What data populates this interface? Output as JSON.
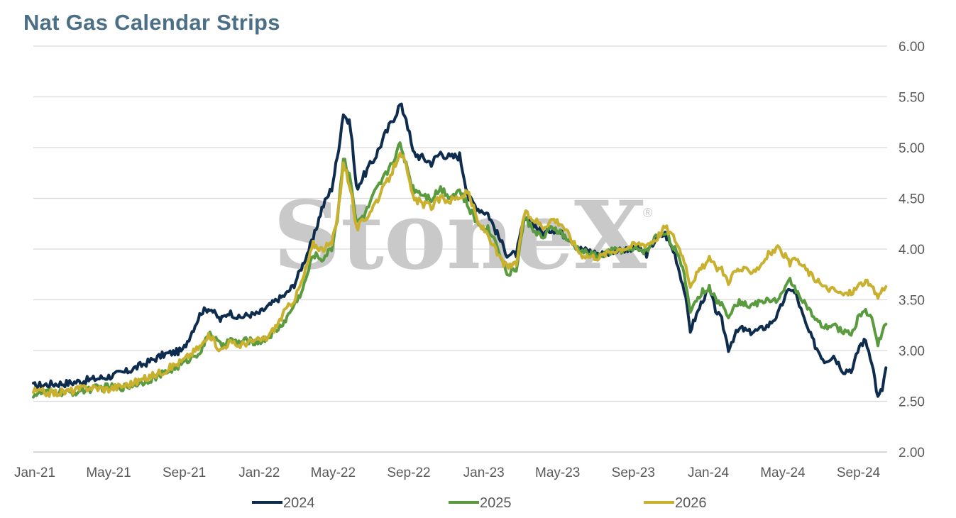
{
  "chart_data": {
    "type": "line",
    "title": "Nat Gas Calendar Strips",
    "watermark": "StoneX",
    "watermark_mark": "®",
    "x_tick_labels": [
      "Jan-21",
      "May-21",
      "Sep-21",
      "Jan-22",
      "May-22",
      "Sep-22",
      "Jan-23",
      "May-23",
      "Sep-23",
      "Jan-24",
      "May-24",
      "Sep-24"
    ],
    "xlim": [
      "2021-01-01",
      "2024-10-20"
    ],
    "ylim": [
      2.0,
      6.0
    ],
    "y_ticks": [
      "2.00",
      "2.50",
      "3.00",
      "3.50",
      "4.00",
      "4.50",
      "5.00",
      "5.50",
      "6.00"
    ],
    "y_axis_side": "right",
    "grid": "horizontal",
    "legend_position": "bottom",
    "series": [
      {
        "name": "2024",
        "color": "#0e2d4e",
        "points": [
          [
            "2021-01-01",
            2.65
          ],
          [
            "2021-02-01",
            2.67
          ],
          [
            "2021-03-01",
            2.68
          ],
          [
            "2021-04-01",
            2.71
          ],
          [
            "2021-05-01",
            2.74
          ],
          [
            "2021-06-01",
            2.79
          ],
          [
            "2021-07-01",
            2.87
          ],
          [
            "2021-08-01",
            2.96
          ],
          [
            "2021-09-01",
            3.0
          ],
          [
            "2021-10-01",
            3.38
          ],
          [
            "2021-10-15",
            3.42
          ],
          [
            "2021-11-01",
            3.3
          ],
          [
            "2021-11-15",
            3.38
          ],
          [
            "2021-12-01",
            3.32
          ],
          [
            "2021-12-15",
            3.35
          ],
          [
            "2022-01-01",
            3.36
          ],
          [
            "2022-01-15",
            3.42
          ],
          [
            "2022-02-01",
            3.5
          ],
          [
            "2022-02-15",
            3.55
          ],
          [
            "2022-03-01",
            3.65
          ],
          [
            "2022-03-15",
            3.85
          ],
          [
            "2022-04-01",
            4.1
          ],
          [
            "2022-04-15",
            4.4
          ],
          [
            "2022-05-01",
            4.6
          ],
          [
            "2022-05-10",
            4.9
          ],
          [
            "2022-05-20",
            5.35
          ],
          [
            "2022-06-01",
            5.2
          ],
          [
            "2022-06-10",
            4.6
          ],
          [
            "2022-06-25",
            4.75
          ],
          [
            "2022-07-10",
            4.9
          ],
          [
            "2022-07-25",
            5.1
          ],
          [
            "2022-08-10",
            5.3
          ],
          [
            "2022-08-20",
            5.42
          ],
          [
            "2022-08-30",
            5.3
          ],
          [
            "2022-09-10",
            4.95
          ],
          [
            "2022-09-25",
            4.9
          ],
          [
            "2022-10-10",
            4.85
          ],
          [
            "2022-10-25",
            4.95
          ],
          [
            "2022-11-10",
            4.9
          ],
          [
            "2022-11-25",
            4.92
          ],
          [
            "2022-12-10",
            4.5
          ],
          [
            "2022-12-25",
            4.4
          ],
          [
            "2023-01-10",
            4.35
          ],
          [
            "2023-01-25",
            4.15
          ],
          [
            "2023-02-10",
            3.95
          ],
          [
            "2023-02-25",
            3.95
          ],
          [
            "2023-03-10",
            4.3
          ],
          [
            "2023-03-25",
            4.25
          ],
          [
            "2023-04-10",
            4.15
          ],
          [
            "2023-04-25",
            4.2
          ],
          [
            "2023-05-10",
            4.15
          ],
          [
            "2023-05-25",
            4.1
          ],
          [
            "2023-06-10",
            4.0
          ],
          [
            "2023-06-25",
            3.98
          ],
          [
            "2023-07-10",
            3.95
          ],
          [
            "2023-07-25",
            3.96
          ],
          [
            "2023-08-10",
            4.0
          ],
          [
            "2023-08-25",
            3.98
          ],
          [
            "2023-09-10",
            4.02
          ],
          [
            "2023-09-25",
            3.95
          ],
          [
            "2023-10-10",
            4.1
          ],
          [
            "2023-10-25",
            4.15
          ],
          [
            "2023-11-10",
            3.95
          ],
          [
            "2023-11-25",
            3.6
          ],
          [
            "2023-12-05",
            3.2
          ],
          [
            "2023-12-15",
            3.35
          ],
          [
            "2023-12-25",
            3.5
          ],
          [
            "2024-01-05",
            3.6
          ],
          [
            "2024-01-15",
            3.4
          ],
          [
            "2024-01-25",
            3.3
          ],
          [
            "2024-02-05",
            3.02
          ],
          [
            "2024-02-15",
            3.15
          ],
          [
            "2024-02-25",
            3.22
          ],
          [
            "2024-03-10",
            3.18
          ],
          [
            "2024-03-25",
            3.2
          ],
          [
            "2024-04-10",
            3.25
          ],
          [
            "2024-04-25",
            3.35
          ],
          [
            "2024-05-05",
            3.5
          ],
          [
            "2024-05-15",
            3.62
          ],
          [
            "2024-05-25",
            3.55
          ],
          [
            "2024-06-10",
            3.25
          ],
          [
            "2024-06-25",
            3.05
          ],
          [
            "2024-07-10",
            2.9
          ],
          [
            "2024-07-25",
            2.95
          ],
          [
            "2024-08-10",
            2.8
          ],
          [
            "2024-08-25",
            2.82
          ],
          [
            "2024-09-05",
            3.05
          ],
          [
            "2024-09-15",
            3.1
          ],
          [
            "2024-09-25",
            2.9
          ],
          [
            "2024-10-05",
            2.53
          ],
          [
            "2024-10-12",
            2.62
          ],
          [
            "2024-10-18",
            2.83
          ]
        ]
      },
      {
        "name": "2025",
        "color": "#5b9b3f",
        "points": [
          [
            "2021-01-01",
            2.57
          ],
          [
            "2021-02-01",
            2.59
          ],
          [
            "2021-03-01",
            2.58
          ],
          [
            "2021-04-01",
            2.62
          ],
          [
            "2021-05-01",
            2.64
          ],
          [
            "2021-06-01",
            2.64
          ],
          [
            "2021-07-01",
            2.7
          ],
          [
            "2021-08-01",
            2.77
          ],
          [
            "2021-09-01",
            2.87
          ],
          [
            "2021-10-01",
            3.0
          ],
          [
            "2021-10-15",
            3.18
          ],
          [
            "2021-11-01",
            3.05
          ],
          [
            "2021-11-15",
            3.1
          ],
          [
            "2021-12-01",
            3.08
          ],
          [
            "2021-12-15",
            3.1
          ],
          [
            "2022-01-01",
            3.08
          ],
          [
            "2022-01-15",
            3.12
          ],
          [
            "2022-02-01",
            3.2
          ],
          [
            "2022-02-15",
            3.3
          ],
          [
            "2022-03-01",
            3.45
          ],
          [
            "2022-03-15",
            3.6
          ],
          [
            "2022-04-01",
            3.95
          ],
          [
            "2022-04-15",
            3.9
          ],
          [
            "2022-05-01",
            4.0
          ],
          [
            "2022-05-10",
            4.3
          ],
          [
            "2022-05-20",
            4.9
          ],
          [
            "2022-06-01",
            4.7
          ],
          [
            "2022-06-10",
            4.25
          ],
          [
            "2022-06-25",
            4.35
          ],
          [
            "2022-07-10",
            4.55
          ],
          [
            "2022-07-25",
            4.7
          ],
          [
            "2022-08-10",
            4.9
          ],
          [
            "2022-08-20",
            5.02
          ],
          [
            "2022-08-30",
            4.85
          ],
          [
            "2022-09-10",
            4.6
          ],
          [
            "2022-09-25",
            4.55
          ],
          [
            "2022-10-10",
            4.5
          ],
          [
            "2022-10-25",
            4.6
          ],
          [
            "2022-11-10",
            4.52
          ],
          [
            "2022-11-25",
            4.58
          ],
          [
            "2022-12-10",
            4.4
          ],
          [
            "2022-12-25",
            4.25
          ],
          [
            "2023-01-10",
            4.2
          ],
          [
            "2023-01-25",
            4.05
          ],
          [
            "2023-02-10",
            3.75
          ],
          [
            "2023-02-25",
            3.8
          ],
          [
            "2023-03-10",
            4.3
          ],
          [
            "2023-03-25",
            4.2
          ],
          [
            "2023-04-10",
            4.1
          ],
          [
            "2023-04-25",
            4.22
          ],
          [
            "2023-05-10",
            4.15
          ],
          [
            "2023-05-25",
            4.05
          ],
          [
            "2023-06-10",
            3.98
          ],
          [
            "2023-06-25",
            3.95
          ],
          [
            "2023-07-10",
            3.93
          ],
          [
            "2023-07-25",
            3.97
          ],
          [
            "2023-08-10",
            4.0
          ],
          [
            "2023-08-25",
            3.98
          ],
          [
            "2023-09-10",
            4.0
          ],
          [
            "2023-09-25",
            3.98
          ],
          [
            "2023-10-10",
            4.12
          ],
          [
            "2023-10-25",
            4.18
          ],
          [
            "2023-11-10",
            4.0
          ],
          [
            "2023-11-25",
            3.75
          ],
          [
            "2023-12-05",
            3.4
          ],
          [
            "2023-12-15",
            3.5
          ],
          [
            "2023-12-25",
            3.58
          ],
          [
            "2024-01-05",
            3.62
          ],
          [
            "2024-01-15",
            3.5
          ],
          [
            "2024-01-25",
            3.45
          ],
          [
            "2024-02-05",
            3.35
          ],
          [
            "2024-02-15",
            3.45
          ],
          [
            "2024-02-25",
            3.48
          ],
          [
            "2024-03-10",
            3.44
          ],
          [
            "2024-03-25",
            3.47
          ],
          [
            "2024-04-10",
            3.5
          ],
          [
            "2024-04-25",
            3.5
          ],
          [
            "2024-05-05",
            3.58
          ],
          [
            "2024-05-15",
            3.7
          ],
          [
            "2024-05-25",
            3.6
          ],
          [
            "2024-06-10",
            3.45
          ],
          [
            "2024-06-25",
            3.3
          ],
          [
            "2024-07-10",
            3.22
          ],
          [
            "2024-07-25",
            3.25
          ],
          [
            "2024-08-10",
            3.18
          ],
          [
            "2024-08-25",
            3.18
          ],
          [
            "2024-09-05",
            3.35
          ],
          [
            "2024-09-15",
            3.4
          ],
          [
            "2024-09-25",
            3.3
          ],
          [
            "2024-10-05",
            3.08
          ],
          [
            "2024-10-12",
            3.18
          ],
          [
            "2024-10-18",
            3.26
          ]
        ]
      },
      {
        "name": "2026",
        "color": "#c9b12f",
        "points": [
          [
            "2021-01-01",
            2.6
          ],
          [
            "2021-02-01",
            2.58
          ],
          [
            "2021-03-01",
            2.6
          ],
          [
            "2021-04-01",
            2.64
          ],
          [
            "2021-05-01",
            2.62
          ],
          [
            "2021-06-01",
            2.66
          ],
          [
            "2021-07-01",
            2.72
          ],
          [
            "2021-08-01",
            2.8
          ],
          [
            "2021-09-01",
            2.9
          ],
          [
            "2021-10-01",
            3.05
          ],
          [
            "2021-10-15",
            3.15
          ],
          [
            "2021-11-01",
            3.0
          ],
          [
            "2021-11-15",
            3.08
          ],
          [
            "2021-12-01",
            3.05
          ],
          [
            "2021-12-15",
            3.08
          ],
          [
            "2022-01-01",
            3.1
          ],
          [
            "2022-01-15",
            3.12
          ],
          [
            "2022-02-01",
            3.25
          ],
          [
            "2022-02-15",
            3.4
          ],
          [
            "2022-03-01",
            3.5
          ],
          [
            "2022-03-15",
            3.7
          ],
          [
            "2022-04-01",
            4.05
          ],
          [
            "2022-04-15",
            4.0
          ],
          [
            "2022-05-01",
            4.05
          ],
          [
            "2022-05-10",
            4.3
          ],
          [
            "2022-05-20",
            4.85
          ],
          [
            "2022-06-01",
            4.6
          ],
          [
            "2022-06-10",
            4.2
          ],
          [
            "2022-06-25",
            4.3
          ],
          [
            "2022-07-10",
            4.45
          ],
          [
            "2022-07-25",
            4.6
          ],
          [
            "2022-08-10",
            4.8
          ],
          [
            "2022-08-20",
            4.98
          ],
          [
            "2022-08-30",
            4.8
          ],
          [
            "2022-09-10",
            4.5
          ],
          [
            "2022-09-25",
            4.45
          ],
          [
            "2022-10-10",
            4.42
          ],
          [
            "2022-10-25",
            4.5
          ],
          [
            "2022-11-10",
            4.48
          ],
          [
            "2022-11-25",
            4.52
          ],
          [
            "2022-12-10",
            4.55
          ],
          [
            "2022-12-25",
            4.25
          ],
          [
            "2023-01-10",
            4.15
          ],
          [
            "2023-01-25",
            3.95
          ],
          [
            "2023-02-10",
            3.82
          ],
          [
            "2023-02-25",
            3.85
          ],
          [
            "2023-03-10",
            4.35
          ],
          [
            "2023-03-25",
            4.3
          ],
          [
            "2023-04-10",
            4.22
          ],
          [
            "2023-04-25",
            4.3
          ],
          [
            "2023-05-10",
            4.25
          ],
          [
            "2023-05-25",
            4.1
          ],
          [
            "2023-06-10",
            3.95
          ],
          [
            "2023-06-25",
            3.93
          ],
          [
            "2023-07-10",
            3.92
          ],
          [
            "2023-07-25",
            3.97
          ],
          [
            "2023-08-10",
            4.0
          ],
          [
            "2023-08-25",
            4.02
          ],
          [
            "2023-09-10",
            4.05
          ],
          [
            "2023-09-25",
            4.05
          ],
          [
            "2023-10-10",
            4.1
          ],
          [
            "2023-10-25",
            4.22
          ],
          [
            "2023-11-10",
            4.1
          ],
          [
            "2023-11-25",
            3.9
          ],
          [
            "2023-12-05",
            3.65
          ],
          [
            "2023-12-15",
            3.75
          ],
          [
            "2023-12-25",
            3.82
          ],
          [
            "2024-01-05",
            3.9
          ],
          [
            "2024-01-15",
            3.82
          ],
          [
            "2024-01-25",
            3.8
          ],
          [
            "2024-02-05",
            3.68
          ],
          [
            "2024-02-15",
            3.78
          ],
          [
            "2024-02-25",
            3.8
          ],
          [
            "2024-03-10",
            3.78
          ],
          [
            "2024-03-25",
            3.82
          ],
          [
            "2024-04-10",
            3.95
          ],
          [
            "2024-04-25",
            4.0
          ],
          [
            "2024-05-05",
            3.95
          ],
          [
            "2024-05-15",
            3.85
          ],
          [
            "2024-05-25",
            3.9
          ],
          [
            "2024-06-10",
            3.8
          ],
          [
            "2024-06-25",
            3.7
          ],
          [
            "2024-07-10",
            3.62
          ],
          [
            "2024-07-25",
            3.6
          ],
          [
            "2024-08-10",
            3.55
          ],
          [
            "2024-08-25",
            3.58
          ],
          [
            "2024-09-05",
            3.65
          ],
          [
            "2024-09-15",
            3.68
          ],
          [
            "2024-09-25",
            3.62
          ],
          [
            "2024-10-05",
            3.53
          ],
          [
            "2024-10-12",
            3.6
          ],
          [
            "2024-10-18",
            3.63
          ]
        ]
      }
    ]
  }
}
